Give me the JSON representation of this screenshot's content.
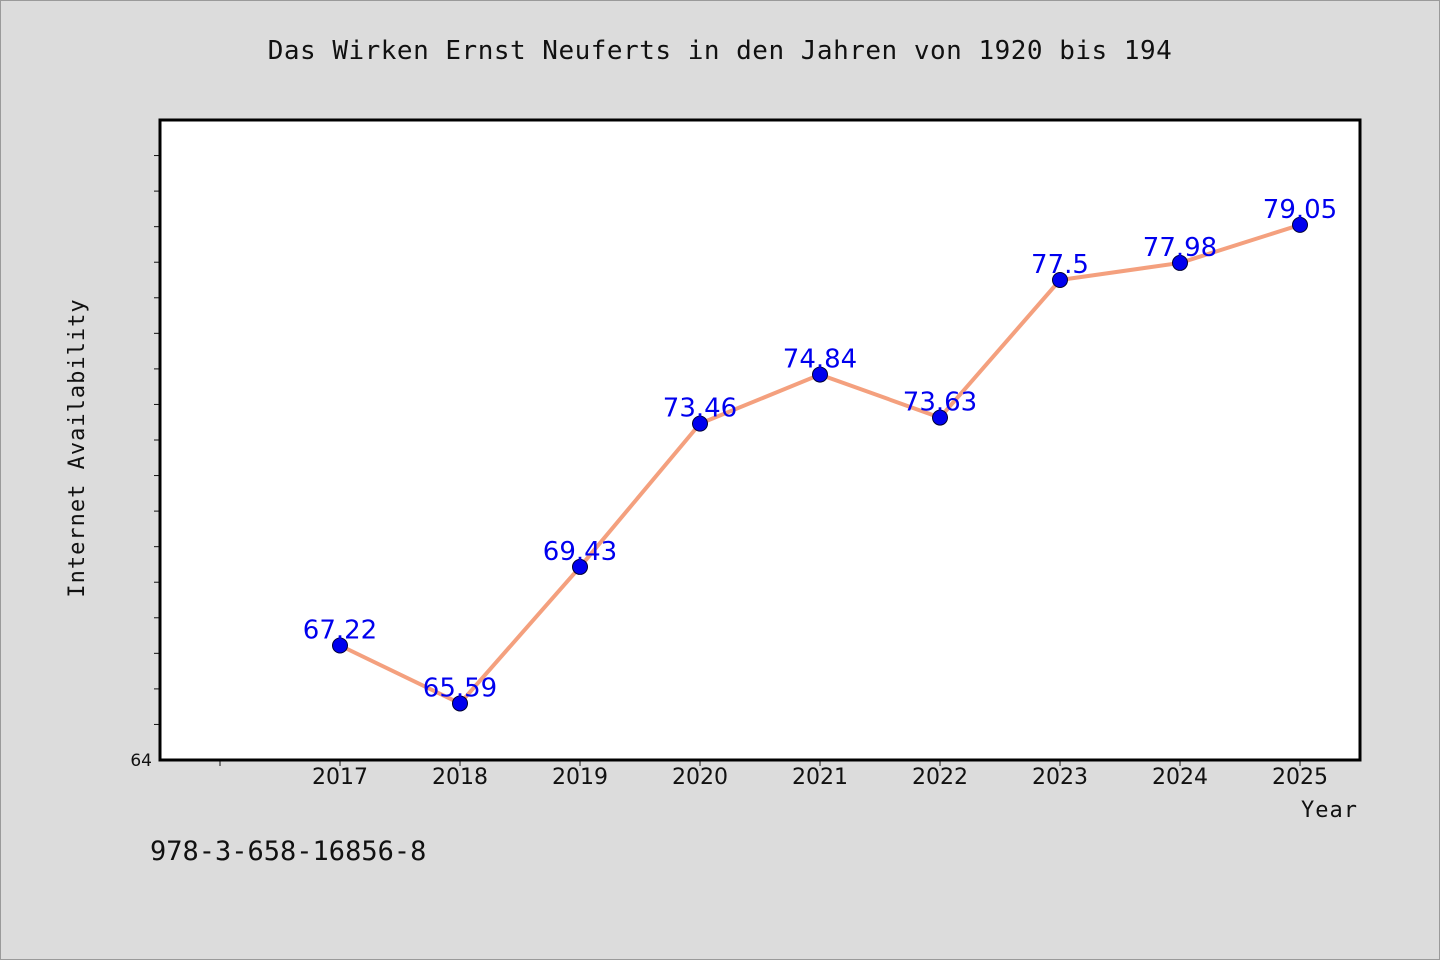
{
  "figure": {
    "title": "Das Wirken Ernst Neuferts in den Jahren von 1920 bis 194",
    "footer_text": "978-3-658-16856-8",
    "background_color": "#dcdcdc"
  },
  "chart_data": {
    "type": "line",
    "title": "Das Wirken Ernst Neuferts in den Jahren von 1920 bis 194",
    "xlabel": "Year",
    "ylabel": "Internet Availability",
    "categories": [
      "2017",
      "2018",
      "2019",
      "2020",
      "2021",
      "2022",
      "2023",
      "2024",
      "2025"
    ],
    "series": [
      {
        "values": [
          67.22,
          65.59,
          69.43,
          73.46,
          74.84,
          73.63,
          77.5,
          77.98,
          79.05
        ],
        "value_labels": [
          "67.22",
          "65.59",
          "69.43",
          "73.46",
          "74.84",
          "73.63",
          "77.5",
          "77.98",
          "79.05"
        ],
        "line_color": "#f4a07e",
        "marker_color": "#0000ee"
      }
    ],
    "ylim": [
      64,
      82
    ],
    "y_tick_labels": [
      "64"
    ],
    "grid": false,
    "legend": "none",
    "data_label_color": "#0000ee"
  }
}
